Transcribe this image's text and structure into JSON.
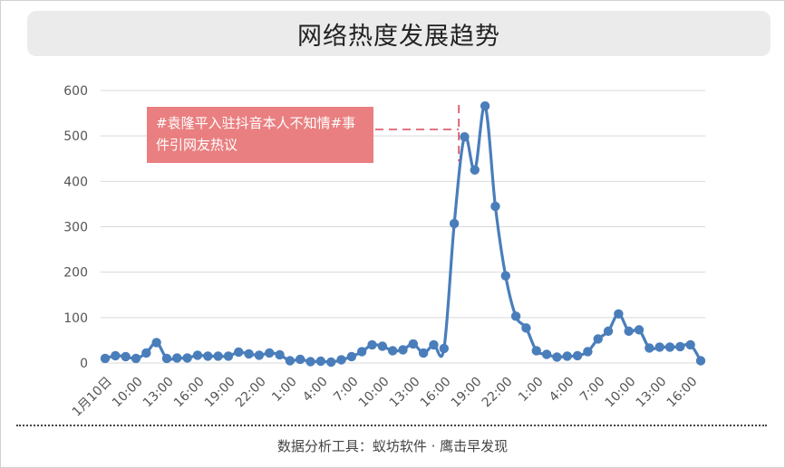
{
  "header": {
    "title": "网络热度发展趋势"
  },
  "annotation": {
    "text": "#袁隆平入驻抖音本人不知情#事件引网友热议"
  },
  "footer": {
    "source": "数据分析工具：蚁坊软件 · 鹰击早发现"
  },
  "colors": {
    "line": "#4a7ebb",
    "annotation_fill": "#e8797a",
    "annotation_dash": "#d9485a",
    "grid": "#d9d9d9",
    "title_bg": "#ebebeb"
  },
  "chart_data": {
    "type": "line",
    "title": "网络热度发展趋势",
    "xlabel": "",
    "ylabel": "",
    "ylim": [
      0,
      600
    ],
    "yticks": [
      0,
      100,
      200,
      300,
      400,
      500,
      600
    ],
    "grid": true,
    "x_tick_labels": [
      "1月10日",
      "10:00",
      "13:00",
      "16:00",
      "19:00",
      "22:00",
      "1:00",
      "4:00",
      "7:00",
      "10:00",
      "13:00",
      "16:00",
      "19:00",
      "22:00",
      "1:00",
      "4:00",
      "7:00",
      "10:00",
      "13:00",
      "16:00"
    ],
    "x_tick_every": 3,
    "series": [
      {
        "values": [
          10,
          16,
          14,
          10,
          22,
          45,
          10,
          11,
          11,
          17,
          15,
          15,
          15,
          24,
          20,
          17,
          22,
          18,
          5,
          8,
          3,
          4,
          2,
          7,
          14,
          25,
          40,
          37,
          27,
          29,
          42,
          22,
          40,
          32,
          307,
          498,
          425,
          566,
          345,
          192,
          103,
          77,
          27,
          19,
          13,
          15,
          16,
          25,
          53,
          70,
          108,
          70,
          73,
          33,
          35,
          35,
          36,
          40,
          5
        ]
      }
    ],
    "annotation": {
      "text": "#袁隆平入驻抖音本人不知情#事件引网友热议",
      "x_index": 34
    }
  }
}
